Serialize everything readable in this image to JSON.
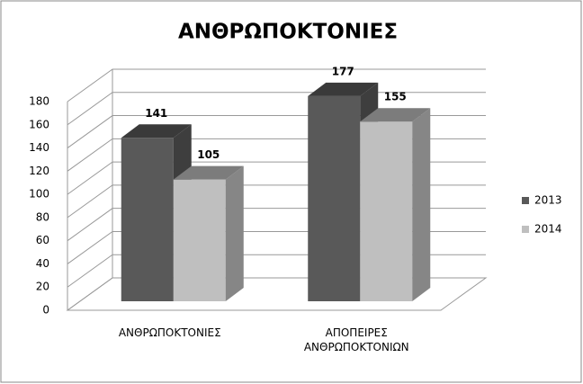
{
  "chart_data": {
    "type": "bar3d",
    "title": "ΑΝΘΡΩΠΟΚΤΟΝΙΕΣ",
    "categories": [
      "ΑΝΘΡΩΠΟΚΤΟΝΙΕΣ",
      "ΑΠΟΠΕΙΡΕΣ ΑΝΘΡΩΠΟΚΤΟΝΙΩΝ"
    ],
    "series": [
      {
        "name": "2013",
        "color": "#595959",
        "values": [
          141,
          177
        ]
      },
      {
        "name": "2014",
        "color": "#bfbfbf",
        "values": [
          105,
          155
        ]
      }
    ],
    "ylim": [
      0,
      180
    ],
    "yticks": [
      0,
      20,
      40,
      60,
      80,
      100,
      120,
      140,
      160,
      180
    ],
    "grid": true,
    "legend": "right"
  }
}
